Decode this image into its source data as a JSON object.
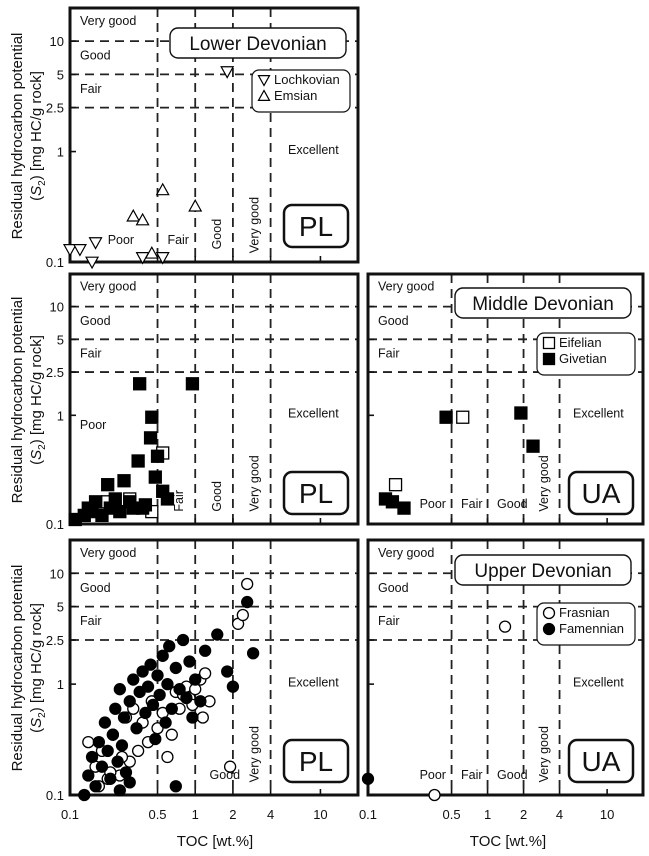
{
  "y_axis_title": {
    "line1": "Residual hydrocarbon potential",
    "line2_pre": "(",
    "line2_s": "S",
    "line2_sub": "2",
    "line2_post": ") [mg HC/g rock]"
  },
  "x_axis_title": "TOC [wt.%]",
  "zone_labels": {
    "very_good": "Very good",
    "good": "Good",
    "fair": "Fair",
    "poor": "Poor",
    "excellent": "Excellent"
  },
  "colors": {
    "ink": "#111111",
    "filled": "#000000",
    "open": "#ffffff"
  },
  "chart_data": [
    {
      "type": "scatter",
      "panel": "lower-devonian-PL",
      "title": "Lower Devonian",
      "region": "PL",
      "log_axes": true,
      "xlim": [
        0.1,
        20
      ],
      "ylim": [
        0.1,
        20
      ],
      "x_ticks": [],
      "y_ticks": [
        "0.1",
        "1",
        "2.5",
        "5",
        "10"
      ],
      "legend": {
        "position": "top-right",
        "entries": [
          {
            "name": "Lochkovian",
            "marker": "triangle-down"
          },
          {
            "name": "Emsian",
            "marker": "triangle-up"
          }
        ]
      },
      "series": [
        {
          "name": "Lochkovian",
          "marker": "triangle-down",
          "fill": "open",
          "x": [
            0.1,
            0.12,
            0.15,
            0.16,
            0.38,
            0.55,
            1.8
          ],
          "y": [
            0.13,
            0.13,
            0.1,
            0.15,
            0.11,
            0.11,
            5.3
          ]
        },
        {
          "name": "Emsian",
          "marker": "triangle-up",
          "fill": "open",
          "x": [
            0.32,
            0.38,
            0.45,
            0.55,
            1.0
          ],
          "y": [
            0.26,
            0.24,
            0.12,
            0.45,
            0.32
          ]
        }
      ]
    },
    {
      "type": "scatter",
      "panel": "middle-devonian-PL",
      "region": "PL",
      "log_axes": true,
      "xlim": [
        0.1,
        20
      ],
      "ylim": [
        0.1,
        20
      ],
      "x_ticks": [],
      "y_ticks": [
        "0.1",
        "1",
        "2.5",
        "5",
        "10"
      ],
      "series": [
        {
          "name": "Eifelian",
          "marker": "square",
          "fill": "open",
          "x": [
            0.2,
            0.3,
            0.45,
            0.55
          ],
          "y": [
            0.16,
            0.17,
            0.13,
            0.45
          ]
        },
        {
          "name": "Givetian",
          "marker": "square",
          "fill": "filled",
          "x": [
            0.11,
            0.13,
            0.14,
            0.15,
            0.16,
            0.18,
            0.2,
            0.21,
            0.23,
            0.25,
            0.27,
            0.3,
            0.32,
            0.35,
            0.38,
            0.4,
            0.44,
            0.45,
            0.48,
            0.5,
            0.55,
            0.6,
            0.95,
            0.36
          ],
          "y": [
            0.11,
            0.12,
            0.14,
            0.13,
            0.16,
            0.12,
            0.23,
            0.14,
            0.17,
            0.13,
            0.25,
            0.16,
            0.14,
            0.38,
            0.14,
            0.15,
            0.62,
            0.96,
            0.27,
            0.42,
            0.2,
            0.17,
            1.95,
            1.95
          ]
        }
      ]
    },
    {
      "type": "scatter",
      "panel": "middle-devonian-UA",
      "title": "Middle Devonian",
      "region": "UA",
      "log_axes": true,
      "xlim": [
        0.1,
        20
      ],
      "ylim": [
        0.1,
        20
      ],
      "x_ticks": [],
      "y_ticks": [],
      "legend": {
        "position": "top-right",
        "entries": [
          {
            "name": "Eifelian",
            "marker": "square-open"
          },
          {
            "name": "Givetian",
            "marker": "square-filled"
          }
        ]
      },
      "series": [
        {
          "name": "Eifelian",
          "marker": "square",
          "fill": "open",
          "x": [
            0.17,
            0.62
          ],
          "y": [
            0.23,
            0.96
          ]
        },
        {
          "name": "Givetian",
          "marker": "square",
          "fill": "filled",
          "x": [
            0.14,
            0.16,
            0.2,
            0.45,
            1.9,
            2.4
          ],
          "y": [
            0.17,
            0.16,
            0.14,
            0.96,
            1.05,
            0.52
          ]
        }
      ]
    },
    {
      "type": "scatter",
      "panel": "upper-devonian-PL",
      "region": "PL",
      "log_axes": true,
      "xlim": [
        0.1,
        20
      ],
      "ylim": [
        0.1,
        20
      ],
      "x_ticks": [
        "0.1",
        "0.5",
        "1",
        "2",
        "4",
        "10"
      ],
      "y_ticks": [
        "0.1",
        "1",
        "2.5",
        "5",
        "10"
      ],
      "series": [
        {
          "name": "Frasnian",
          "marker": "circle",
          "fill": "open",
          "x": [
            0.14,
            0.16,
            0.18,
            0.2,
            0.22,
            0.25,
            0.28,
            0.3,
            0.32,
            0.35,
            0.38,
            0.42,
            0.45,
            0.5,
            0.55,
            0.6,
            0.7,
            0.75,
            0.8,
            0.85,
            0.9,
            1.0,
            1.1,
            1.2,
            1.3,
            0.65,
            0.95,
            2.2,
            2.4,
            2.6,
            1.9,
            1.15,
            0.17,
            0.21,
            0.26
          ],
          "y": [
            0.3,
            0.18,
            0.25,
            0.14,
            0.35,
            0.15,
            0.5,
            0.2,
            0.6,
            0.25,
            0.45,
            0.3,
            0.7,
            0.4,
            0.55,
            0.22,
            0.85,
            0.6,
            0.8,
            0.95,
            0.75,
            0.9,
            1.1,
            1.25,
            0.7,
            0.35,
            0.65,
            3.5,
            4.2,
            8.0,
            0.18,
            0.5,
            0.12,
            0.16,
            0.22
          ]
        },
        {
          "name": "Famennian",
          "marker": "circle",
          "fill": "filled",
          "x": [
            0.13,
            0.14,
            0.15,
            0.16,
            0.17,
            0.18,
            0.19,
            0.2,
            0.21,
            0.22,
            0.23,
            0.24,
            0.25,
            0.26,
            0.27,
            0.28,
            0.3,
            0.32,
            0.34,
            0.36,
            0.38,
            0.4,
            0.42,
            0.44,
            0.46,
            0.48,
            0.5,
            0.52,
            0.55,
            0.58,
            0.6,
            0.62,
            0.65,
            0.7,
            0.75,
            0.8,
            0.85,
            0.9,
            0.95,
            1.0,
            1.1,
            1.2,
            1.5,
            1.8,
            2.0,
            2.6,
            2.9,
            0.7,
            0.3,
            0.25
          ],
          "y": [
            0.1,
            0.15,
            0.22,
            0.12,
            0.3,
            0.18,
            0.45,
            0.25,
            0.14,
            0.35,
            0.6,
            0.2,
            0.9,
            0.28,
            0.5,
            0.16,
            0.7,
            1.1,
            0.4,
            0.85,
            1.3,
            0.55,
            0.95,
            1.5,
            0.65,
            0.32,
            1.2,
            0.8,
            1.8,
            0.45,
            1.0,
            2.2,
            0.6,
            1.4,
            0.9,
            2.5,
            0.75,
            1.6,
            0.5,
            1.1,
            0.7,
            2.0,
            2.8,
            1.3,
            0.95,
            5.5,
            1.9,
            0.12,
            0.13,
            0.11
          ]
        }
      ]
    },
    {
      "type": "scatter",
      "panel": "upper-devonian-UA",
      "title": "Upper Devonian",
      "region": "UA",
      "log_axes": true,
      "xlim": [
        0.1,
        20
      ],
      "ylim": [
        0.1,
        20
      ],
      "x_ticks": [
        "0.1",
        "0.5",
        "1",
        "2",
        "4",
        "10"
      ],
      "y_ticks": [],
      "legend": {
        "position": "top-right",
        "entries": [
          {
            "name": "Frasnian",
            "marker": "circle-open"
          },
          {
            "name": "Famennian",
            "marker": "circle-filled"
          }
        ]
      },
      "series": [
        {
          "name": "Frasnian",
          "marker": "circle",
          "fill": "open",
          "x": [
            0.36,
            1.4
          ],
          "y": [
            0.1,
            3.3
          ]
        },
        {
          "name": "Famennian",
          "marker": "circle",
          "fill": "filled",
          "x": [
            0.1
          ],
          "y": [
            0.14
          ]
        }
      ]
    }
  ]
}
